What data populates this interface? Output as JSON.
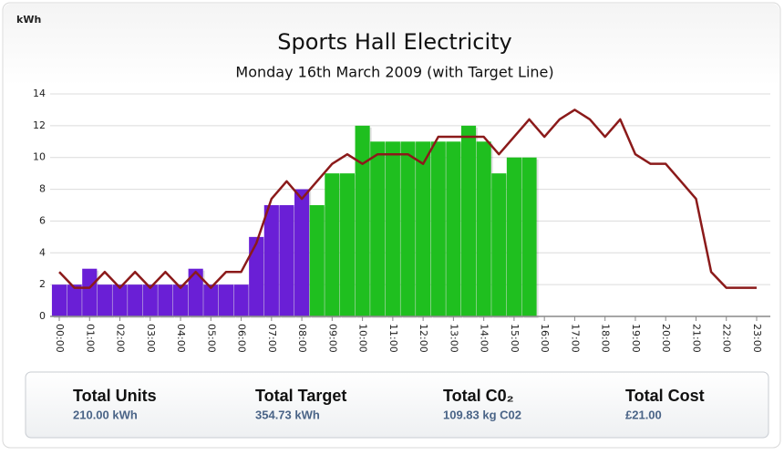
{
  "chart_data": {
    "type": "bar_line",
    "title": "Sports Hall Electricity",
    "subtitle": "Monday 16th March 2009 (with Target Line)",
    "y_label": "kWh",
    "categories": [
      "00:00",
      null,
      "01:00",
      null,
      "02:00",
      null,
      "03:00",
      null,
      "04:00",
      null,
      "05:00",
      null,
      "06:00",
      null,
      "07:00",
      null,
      "08:00",
      null,
      "09:00",
      null,
      "10:00",
      null,
      "11:00",
      null,
      "12:00",
      null,
      "13:00",
      null,
      "14:00",
      null,
      "15:00",
      null,
      "16:00",
      null,
      "17:00",
      null,
      "18:00",
      null,
      "19:00",
      null,
      "20:00",
      null,
      "21:00",
      null,
      "22:00",
      null,
      "23:00"
    ],
    "series": [
      {
        "kind": "bar",
        "color": "#6a1fd6",
        "values": [
          2,
          2,
          3,
          2,
          2,
          2,
          2,
          2,
          2,
          3,
          2,
          2,
          2,
          5,
          7,
          7,
          8,
          null,
          null,
          null,
          null,
          null,
          null,
          null,
          null,
          null,
          null,
          null,
          null,
          null,
          null,
          null,
          null,
          null,
          null,
          null,
          null,
          null,
          null,
          null,
          null,
          null,
          null,
          null,
          null,
          null,
          null
        ]
      },
      {
        "kind": "bar",
        "color": "#1fbf1f",
        "values": [
          null,
          null,
          null,
          null,
          null,
          null,
          null,
          null,
          null,
          null,
          null,
          null,
          null,
          null,
          null,
          null,
          null,
          7,
          9,
          9,
          12,
          11,
          11,
          11,
          11,
          11,
          11,
          12,
          11,
          9,
          10,
          10,
          null,
          null,
          null,
          null,
          null,
          null,
          null,
          null,
          null,
          null,
          null,
          null,
          null,
          null,
          null
        ]
      },
      {
        "kind": "line",
        "color": "#8b1a1a",
        "values": [
          2.8,
          1.8,
          1.8,
          2.8,
          1.8,
          2.8,
          1.8,
          2.8,
          1.8,
          2.8,
          1.8,
          2.8,
          2.8,
          4.6,
          7.4,
          8.5,
          7.4,
          8.5,
          9.6,
          10.2,
          9.6,
          10.2,
          10.2,
          10.2,
          9.6,
          11.3,
          11.3,
          11.3,
          11.3,
          10.2,
          11.3,
          12.4,
          11.3,
          12.4,
          13.0,
          12.4,
          11.3,
          12.4,
          10.2,
          9.6,
          9.6,
          8.5,
          7.4,
          2.8,
          1.8,
          1.8,
          1.8
        ]
      }
    ],
    "ylim": [
      0,
      14
    ],
    "yticks": [
      0,
      2,
      4,
      6,
      8,
      10,
      12,
      14
    ],
    "grid": true
  },
  "summary": [
    {
      "label": "Total Units",
      "value": "210.00 kWh"
    },
    {
      "label": "Total Target",
      "value": "354.73 kWh"
    },
    {
      "label": "Total C0₂",
      "value": "109.83 kg C02"
    },
    {
      "label": "Total Cost",
      "value": "£21.00"
    }
  ]
}
